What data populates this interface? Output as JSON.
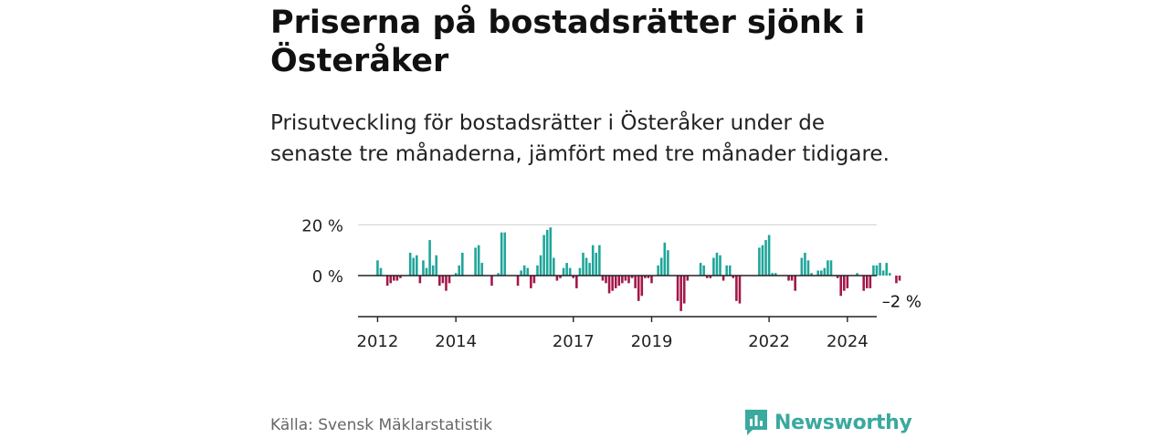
{
  "title": "Priserna på bostadsrätter sjönk i Österåker",
  "subtitle": "Prisutveckling för bostadsrätter i Österåker under de senaste tre månaderna, jämfört med tre månader tidigare.",
  "source": "Källa: Svensk Mäklarstatistik",
  "logo_text": "Newsworthy",
  "colors": {
    "positive": "#1fa59a",
    "negative": "#a3174a",
    "axis": "#222222",
    "grid": "#d9d9d9",
    "brand": "#3aa99f"
  },
  "chart_data": {
    "type": "bar",
    "title": "Priserna på bostadsrätter sjönk i Österåker",
    "xlabel": "",
    "ylabel": "",
    "unit": "%",
    "ylim": [
      -16,
      20
    ],
    "yticks": [
      {
        "value": 0,
        "label": "0 %"
      },
      {
        "value": 20,
        "label": "20 %"
      }
    ],
    "x_range": [
      2011.5,
      2024.75
    ],
    "xticks": [
      {
        "value": 2012,
        "label": "2012"
      },
      {
        "value": 2014,
        "label": "2014"
      },
      {
        "value": 2017,
        "label": "2017"
      },
      {
        "value": 2019,
        "label": "2019"
      },
      {
        "value": 2022,
        "label": "2022"
      },
      {
        "value": 2024,
        "label": "2024"
      }
    ],
    "start_year": 2012,
    "months_per_bar": 1,
    "last_label": "–2 %",
    "values": [
      6,
      3,
      0,
      -4,
      -3,
      -2,
      -2,
      -1,
      0,
      0,
      9,
      7,
      8,
      -3,
      6,
      3,
      14,
      4,
      8,
      -4,
      -3,
      -6,
      -3,
      0,
      1,
      4,
      9,
      0,
      0,
      0,
      11,
      12,
      5,
      0,
      0,
      -4,
      0,
      1,
      17,
      17,
      0,
      0,
      0,
      -4,
      2,
      4,
      3,
      -5,
      -3,
      4,
      8,
      16,
      18,
      19,
      7,
      -2,
      -1,
      3,
      5,
      3,
      -1,
      -5,
      3,
      9,
      7,
      5,
      12,
      9,
      12,
      -2,
      -3,
      -7,
      -6,
      -5,
      -4,
      -3,
      -2,
      -3,
      -1,
      -5,
      -10,
      -8,
      -1,
      -1,
      -3,
      0,
      4,
      7,
      13,
      10,
      0,
      0,
      -10,
      -14,
      -11,
      -2,
      0,
      0,
      0,
      5,
      4,
      -1,
      -1,
      7,
      9,
      8,
      -2,
      4,
      4,
      -1,
      -10,
      -11,
      0,
      0,
      0,
      0,
      0,
      11,
      12,
      14,
      16,
      1,
      1,
      0,
      0,
      0,
      -2,
      -2,
      -6,
      0,
      7,
      9,
      6,
      1,
      0,
      2,
      2,
      3,
      6,
      6,
      0,
      -1,
      -8,
      -6,
      -5,
      0,
      0,
      1,
      0,
      -6,
      -5,
      -5,
      4,
      4,
      5,
      2,
      5,
      1,
      0,
      -3,
      -2
    ]
  }
}
